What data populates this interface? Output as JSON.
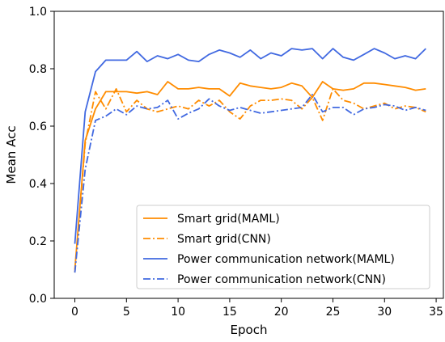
{
  "chart_data": {
    "type": "line",
    "xlabel": "Epoch",
    "ylabel": "Mean Acc",
    "xlim": [
      -2,
      35.7
    ],
    "ylim": [
      0.0,
      1.0
    ],
    "xticks": [
      "0",
      "5",
      "10",
      "15",
      "20",
      "25",
      "30",
      "35"
    ],
    "yticks": [
      "0.0",
      "0.2",
      "0.4",
      "0.6",
      "0.8",
      "1.0"
    ],
    "grid": false,
    "legend_position": "lower-right",
    "x": [
      0,
      1,
      2,
      3,
      4,
      5,
      6,
      7,
      8,
      9,
      10,
      11,
      12,
      13,
      14,
      15,
      16,
      17,
      18,
      19,
      20,
      21,
      22,
      23,
      24,
      25,
      26,
      27,
      28,
      29,
      30,
      31,
      32,
      33,
      34
    ],
    "series": [
      {
        "name": "Smart grid(MAML)",
        "color": "#ff8c00",
        "dash": "solid",
        "values": [
          0.1,
          0.55,
          0.66,
          0.72,
          0.72,
          0.72,
          0.715,
          0.72,
          0.71,
          0.755,
          0.73,
          0.73,
          0.735,
          0.73,
          0.73,
          0.705,
          0.75,
          0.74,
          0.735,
          0.73,
          0.735,
          0.75,
          0.74,
          0.7,
          0.755,
          0.73,
          0.725,
          0.73,
          0.75,
          0.75,
          0.745,
          0.74,
          0.735,
          0.725,
          0.73
        ]
      },
      {
        "name": "Smart grid(CNN)",
        "color": "#ff8c00",
        "dash": "dashdot",
        "values": [
          0.09,
          0.54,
          0.72,
          0.66,
          0.73,
          0.65,
          0.69,
          0.66,
          0.65,
          0.66,
          0.67,
          0.66,
          0.69,
          0.67,
          0.69,
          0.65,
          0.625,
          0.67,
          0.69,
          0.69,
          0.695,
          0.69,
          0.66,
          0.7,
          0.62,
          0.73,
          0.69,
          0.68,
          0.66,
          0.67,
          0.68,
          0.66,
          0.67,
          0.665,
          0.65
        ]
      },
      {
        "name": "Power communication network(MAML)",
        "color": "#4169e1",
        "dash": "solid",
        "values": [
          0.19,
          0.65,
          0.79,
          0.83,
          0.83,
          0.83,
          0.86,
          0.825,
          0.845,
          0.835,
          0.85,
          0.83,
          0.825,
          0.85,
          0.865,
          0.855,
          0.84,
          0.865,
          0.835,
          0.855,
          0.845,
          0.87,
          0.865,
          0.87,
          0.835,
          0.87,
          0.84,
          0.83,
          0.85,
          0.87,
          0.855,
          0.835,
          0.845,
          0.835,
          0.87
        ]
      },
      {
        "name": "Power communication network(CNN)",
        "color": "#4169e1",
        "dash": "dashdot",
        "values": [
          0.09,
          0.45,
          0.62,
          0.635,
          0.66,
          0.64,
          0.67,
          0.66,
          0.665,
          0.69,
          0.625,
          0.645,
          0.66,
          0.695,
          0.67,
          0.655,
          0.665,
          0.655,
          0.645,
          0.65,
          0.655,
          0.66,
          0.665,
          0.71,
          0.65,
          0.665,
          0.665,
          0.64,
          0.66,
          0.665,
          0.675,
          0.67,
          0.655,
          0.665,
          0.655
        ]
      }
    ]
  }
}
